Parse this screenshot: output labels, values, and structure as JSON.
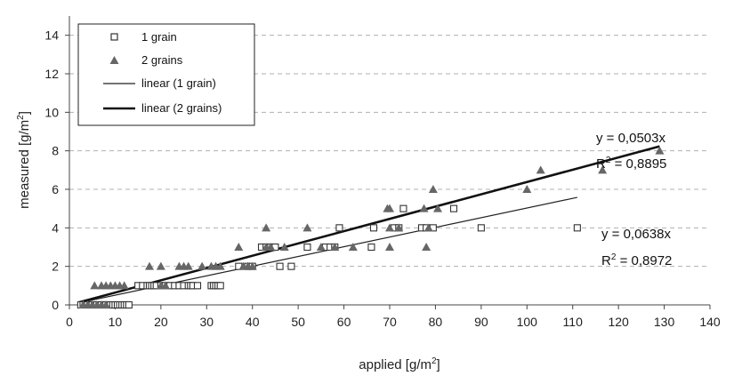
{
  "chart_data": {
    "type": "scatter",
    "xlabel": "applied [g/m²]",
    "ylabel": "measured [g/m²]",
    "xlim": [
      0,
      140
    ],
    "ylim": [
      0,
      15
    ],
    "x_ticks": [
      0,
      10,
      20,
      30,
      40,
      50,
      60,
      70,
      80,
      90,
      100,
      110,
      120,
      130,
      140
    ],
    "y_ticks": [
      0,
      2,
      4,
      6,
      8,
      10,
      12,
      14
    ],
    "grid": "horizontal dashed",
    "legend_position": "top-left",
    "legend": [
      "1 grain",
      "2 grains",
      "linear (1 grain)",
      "linear (2 grains)"
    ],
    "series": [
      {
        "name": "1 grain",
        "marker": "open-square",
        "color": "#333333",
        "points": [
          [
            2.5,
            0
          ],
          [
            3,
            0
          ],
          [
            3.5,
            0
          ],
          [
            4,
            0
          ],
          [
            4.5,
            0
          ],
          [
            5,
            0
          ],
          [
            5.5,
            0
          ],
          [
            6,
            0
          ],
          [
            6.5,
            0
          ],
          [
            7,
            0
          ],
          [
            7.5,
            0
          ],
          [
            8,
            0
          ],
          [
            8.5,
            0
          ],
          [
            9,
            0
          ],
          [
            9.5,
            0
          ],
          [
            10,
            0
          ],
          [
            10.5,
            0
          ],
          [
            11,
            0
          ],
          [
            11.5,
            0
          ],
          [
            12,
            0
          ],
          [
            12.5,
            0
          ],
          [
            13,
            0
          ],
          [
            15,
            1
          ],
          [
            16,
            1
          ],
          [
            17,
            1
          ],
          [
            17.5,
            1
          ],
          [
            18,
            1
          ],
          [
            18.5,
            1
          ],
          [
            19,
            1
          ],
          [
            20,
            1
          ],
          [
            21,
            1
          ],
          [
            22,
            1
          ],
          [
            23,
            1
          ],
          [
            24,
            1
          ],
          [
            25,
            1
          ],
          [
            26,
            1
          ],
          [
            26.5,
            1
          ],
          [
            27,
            1
          ],
          [
            28,
            1
          ],
          [
            31,
            1
          ],
          [
            31.5,
            1
          ],
          [
            32,
            1
          ],
          [
            32.5,
            1
          ],
          [
            33,
            1
          ],
          [
            37,
            2
          ],
          [
            39,
            2
          ],
          [
            40,
            2
          ],
          [
            46,
            2
          ],
          [
            48.5,
            2
          ],
          [
            42,
            3
          ],
          [
            43,
            3
          ],
          [
            44,
            3
          ],
          [
            44.5,
            3
          ],
          [
            45,
            3
          ],
          [
            52,
            3
          ],
          [
            56,
            3
          ],
          [
            57,
            3
          ],
          [
            58,
            3
          ],
          [
            66,
            3
          ],
          [
            59,
            4
          ],
          [
            66.5,
            4
          ],
          [
            71,
            4
          ],
          [
            72,
            4
          ],
          [
            77,
            4
          ],
          [
            78,
            4
          ],
          [
            79.5,
            4
          ],
          [
            90,
            4
          ],
          [
            111,
            4
          ],
          [
            73,
            5
          ],
          [
            84,
            5
          ]
        ]
      },
      {
        "name": "2 grains",
        "marker": "filled-triangle",
        "color": "#666666",
        "points": [
          [
            3,
            0
          ],
          [
            4,
            0
          ],
          [
            5,
            0
          ],
          [
            6,
            0
          ],
          [
            7,
            0
          ],
          [
            8,
            0
          ],
          [
            5.5,
            1
          ],
          [
            7,
            1
          ],
          [
            8,
            1
          ],
          [
            9,
            1
          ],
          [
            10,
            1
          ],
          [
            11,
            1
          ],
          [
            12,
            1
          ],
          [
            20,
            1
          ],
          [
            21,
            1
          ],
          [
            17.5,
            2
          ],
          [
            20,
            2
          ],
          [
            24,
            2
          ],
          [
            25,
            2
          ],
          [
            26,
            2
          ],
          [
            29,
            2
          ],
          [
            31,
            2
          ],
          [
            32,
            2
          ],
          [
            33,
            2
          ],
          [
            38,
            2
          ],
          [
            39,
            2
          ],
          [
            40,
            2
          ],
          [
            37,
            3
          ],
          [
            43,
            3
          ],
          [
            44,
            3
          ],
          [
            47,
            3
          ],
          [
            55,
            3
          ],
          [
            58,
            3
          ],
          [
            62,
            3
          ],
          [
            70,
            3
          ],
          [
            78,
            3
          ],
          [
            43,
            4
          ],
          [
            52,
            4
          ],
          [
            70,
            4
          ],
          [
            72,
            4
          ],
          [
            78.5,
            4
          ],
          [
            69.5,
            5
          ],
          [
            70,
            5
          ],
          [
            77.5,
            5
          ],
          [
            80.5,
            5
          ],
          [
            79.5,
            6
          ],
          [
            100,
            6
          ],
          [
            103,
            7
          ],
          [
            116.5,
            7
          ],
          [
            129,
            8
          ]
        ]
      }
    ],
    "trendlines": [
      {
        "name": "linear (1 grain)",
        "x_range": [
          2,
          111
        ],
        "slope": 0.0503,
        "width": 1.2,
        "color": "#222222"
      },
      {
        "name": "linear (2 grains)",
        "x_range": [
          2,
          129
        ],
        "slope": 0.0638,
        "width": 2.6,
        "color": "#111111"
      }
    ],
    "annotations": {
      "upper_eq": "y = 0,0503x",
      "upper_r2_label": "R",
      "upper_r2_sup": "2",
      "upper_r2_value": " = 0,8895",
      "lower_eq": "y = 0,0638x",
      "lower_r2_label": "R",
      "lower_r2_sup": "2",
      "lower_r2_value": " = 0,8972"
    }
  },
  "labels": {
    "xlabel_main": "applied [g/m",
    "xlabel_sup": "2",
    "xlabel_end": "]",
    "ylabel_main": "measured [g/m",
    "ylabel_sup": "2",
    "ylabel_end": "]",
    "legend_1grain": "1 grain",
    "legend_2grains": "2 grains",
    "legend_lin1": "linear (1 grain)",
    "legend_lin2": "linear (2 grains)"
  }
}
